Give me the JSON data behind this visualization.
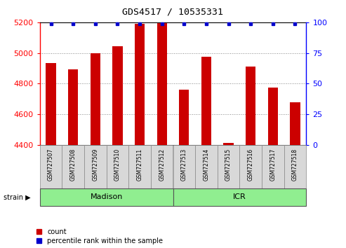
{
  "title": "GDS4517 / 10535331",
  "samples": [
    "GSM727507",
    "GSM727508",
    "GSM727509",
    "GSM727510",
    "GSM727511",
    "GSM727512",
    "GSM727513",
    "GSM727514",
    "GSM727515",
    "GSM727516",
    "GSM727517",
    "GSM727518"
  ],
  "counts": [
    4935,
    4895,
    5000,
    5045,
    5190,
    5195,
    4760,
    4975,
    4415,
    4910,
    4775,
    4680
  ],
  "percentiles": [
    99,
    99,
    99,
    99,
    99,
    99,
    99,
    99,
    99,
    99,
    99,
    99
  ],
  "ylim_left": [
    4400,
    5200
  ],
  "ylim_right": [
    0,
    100
  ],
  "yticks_left": [
    4400,
    4600,
    4800,
    5000,
    5200
  ],
  "yticks_right": [
    0,
    25,
    50,
    75,
    100
  ],
  "bar_color": "#CC0000",
  "dot_color": "#0000CC",
  "bar_width": 0.45,
  "grid_color": "#888888",
  "tick_label_bg": "#D8D8D8",
  "tick_label_border": "#888888",
  "madison_color": "#90EE90",
  "icr_color": "#90EE90",
  "background_color": "#FFFFFF",
  "legend_count_label": "count",
  "legend_pct_label": "percentile rank within the sample",
  "strain_label": "strain",
  "left_spine_color": "#000000",
  "right_spine_color": "#000000",
  "top_spine_color": "#000000"
}
